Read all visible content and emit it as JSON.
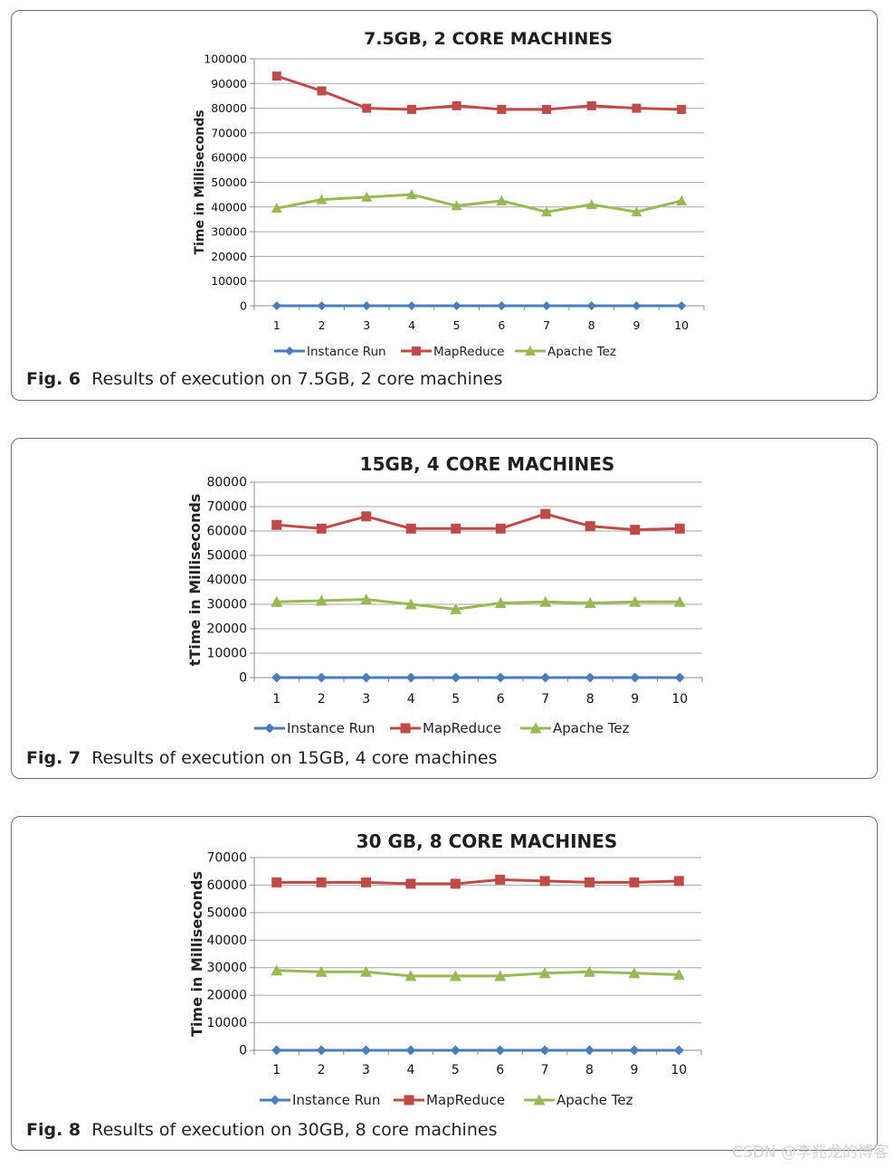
{
  "figures": [
    {
      "fig_label": "Fig. 6",
      "caption": "Results of execution on 7.5GB, 2 core machines",
      "chart_data": {
        "type": "line",
        "title": "7.5GB, 2 CORE MACHINES",
        "xlabel": "",
        "ylabel": "Time in Milliseconds",
        "categories": [
          "1",
          "2",
          "3",
          "4",
          "5",
          "6",
          "7",
          "8",
          "9",
          "10"
        ],
        "ylim": [
          0,
          100000
        ],
        "yticks": [
          "0",
          "10000",
          "20000",
          "30000",
          "40000",
          "50000",
          "60000",
          "70000",
          "80000",
          "90000",
          "100000"
        ],
        "grid": true,
        "legend_position": "bottom",
        "series": [
          {
            "name": "Instance Run",
            "color": "#4a7ebb",
            "marker": "diamond",
            "values": [
              0,
              0,
              0,
              0,
              0,
              0,
              0,
              0,
              0,
              0
            ]
          },
          {
            "name": "MapReduce",
            "color": "#be4b48",
            "marker": "square",
            "values": [
              93000,
              87000,
              80000,
              79500,
              81000,
              79500,
              79500,
              81000,
              80000,
              79500
            ]
          },
          {
            "name": "Apache Tez",
            "color": "#98b954",
            "marker": "triangle",
            "values": [
              39500,
              43000,
              44000,
              45000,
              40500,
              42500,
              38000,
              41000,
              38000,
              42500
            ]
          }
        ]
      }
    },
    {
      "fig_label": "Fig. 7",
      "caption": "Results of execution on 15GB, 4 core machines",
      "chart_data": {
        "type": "line",
        "title": "15GB, 4 CORE MACHINES",
        "xlabel": "",
        "ylabel": "tTime in Milliseconds",
        "categories": [
          "1",
          "2",
          "3",
          "4",
          "5",
          "6",
          "7",
          "8",
          "9",
          "10"
        ],
        "ylim": [
          0,
          80000
        ],
        "yticks": [
          "0",
          "10000",
          "20000",
          "30000",
          "40000",
          "50000",
          "60000",
          "70000",
          "80000"
        ],
        "grid": true,
        "legend_position": "bottom",
        "series": [
          {
            "name": "Instance Run",
            "color": "#4a7ebb",
            "marker": "diamond",
            "values": [
              0,
              0,
              0,
              0,
              0,
              0,
              0,
              0,
              0,
              0
            ]
          },
          {
            "name": "MapReduce",
            "color": "#be4b48",
            "marker": "square",
            "values": [
              62500,
              61000,
              66000,
              61000,
              61000,
              61000,
              67000,
              62000,
              60500,
              61000
            ]
          },
          {
            "name": "Apache Tez",
            "color": "#98b954",
            "marker": "triangle",
            "values": [
              31000,
              31500,
              32000,
              30000,
              28000,
              30500,
              31000,
              30500,
              31000,
              31000
            ]
          }
        ]
      }
    },
    {
      "fig_label": "Fig. 8",
      "caption": "Results of execution on 30GB, 8 core machines",
      "chart_data": {
        "type": "line",
        "title": "30 GB, 8 CORE MACHINES",
        "xlabel": "",
        "ylabel": "Time in Milliseconds",
        "categories": [
          "1",
          "2",
          "3",
          "4",
          "5",
          "6",
          "7",
          "8",
          "9",
          "10"
        ],
        "ylim": [
          0,
          70000
        ],
        "yticks": [
          "0",
          "10000",
          "20000",
          "30000",
          "40000",
          "50000",
          "60000",
          "70000"
        ],
        "grid": true,
        "legend_position": "bottom",
        "series": [
          {
            "name": "Instance Run",
            "color": "#4a7ebb",
            "marker": "diamond",
            "values": [
              0,
              0,
              0,
              0,
              0,
              0,
              0,
              0,
              0,
              0
            ]
          },
          {
            "name": "MapReduce",
            "color": "#be4b48",
            "marker": "square",
            "values": [
              61000,
              61000,
              61000,
              60500,
              60500,
              62000,
              61500,
              61000,
              61000,
              61500
            ]
          },
          {
            "name": "Apache Tez",
            "color": "#98b954",
            "marker": "triangle",
            "values": [
              29000,
              28500,
              28500,
              27000,
              27000,
              27000,
              28000,
              28500,
              28000,
              27500
            ]
          }
        ]
      }
    }
  ],
  "watermark": "CSDN @李兆龙的博客"
}
